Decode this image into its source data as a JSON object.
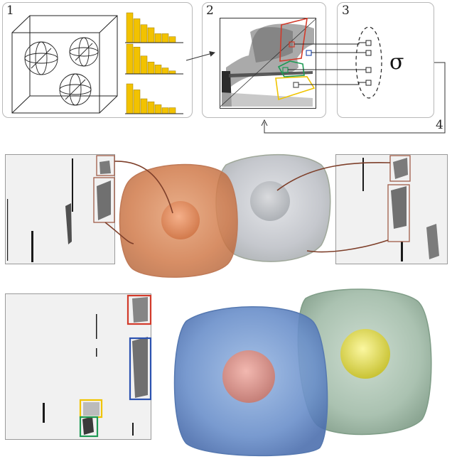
{
  "steps": [
    "1",
    "2",
    "3",
    "4"
  ],
  "sigma_symbol": "σ",
  "colors": {
    "histogram": "#f2c200",
    "red": "#d23a2a",
    "blue": "#2b52b0",
    "green": "#1f9a55",
    "yellow": "#f0c400",
    "connector": "#8a4a30",
    "orange_shell": "#d98a5c",
    "grey_shell": "#b9bcc2",
    "blue_shell": "#6f93c9",
    "green_shell": "#a6bfae"
  },
  "histograms": [
    [
      10,
      8,
      6,
      5,
      3,
      3,
      2
    ],
    [
      10,
      9,
      6,
      4,
      3,
      2,
      1
    ],
    [
      10,
      8,
      5,
      4,
      3,
      2,
      2
    ]
  ]
}
